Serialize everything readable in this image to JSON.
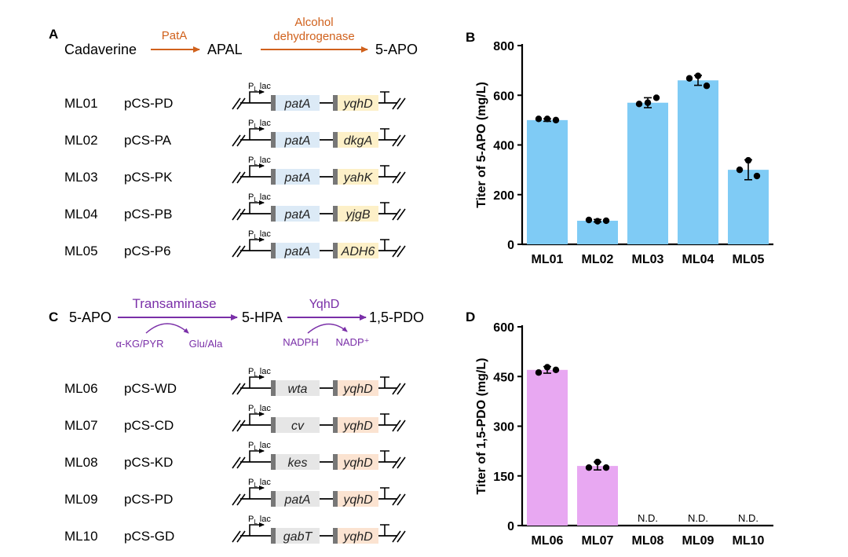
{
  "panels": {
    "A": {
      "letter": "A",
      "pathway": {
        "substrate": "Cadaverine",
        "enzyme1": "PatA",
        "intermediate": "APAL",
        "enzyme2_line1": "Alcohol",
        "enzyme2_line2": "dehydrogenase",
        "product": "5-APO"
      },
      "promoter_label": "P",
      "promoter_sub": "L",
      "promoter_suffix": "lac",
      "strains": [
        {
          "id": "ML01",
          "plasmid": "pCS-PD",
          "gene1": "patA",
          "gene2": "yqhD"
        },
        {
          "id": "ML02",
          "plasmid": "pCS-PA",
          "gene1": "patA",
          "gene2": "dkgA"
        },
        {
          "id": "ML03",
          "plasmid": "pCS-PK",
          "gene1": "patA",
          "gene2": "yahK"
        },
        {
          "id": "ML04",
          "plasmid": "pCS-PB",
          "gene1": "patA",
          "gene2": "yjgB"
        },
        {
          "id": "ML05",
          "plasmid": "pCS-P6",
          "gene1": "patA",
          "gene2": "ADH6"
        }
      ]
    },
    "C": {
      "letter": "C",
      "pathway": {
        "substrate": "5-APO",
        "enzyme1": "Transaminase",
        "cosub_in": "α-KG/PYR",
        "cosub_out": "Glu/Ala",
        "intermediate": "5-HPA",
        "enzyme2": "YqhD",
        "cofactor_in": "NADPH",
        "cofactor_out": "NADP⁺",
        "product": "1,5-PDO"
      },
      "promoter_label": "P",
      "promoter_sub": "L",
      "promoter_suffix": "lac",
      "strains": [
        {
          "id": "ML06",
          "plasmid": "pCS-WD",
          "gene1": "wta",
          "gene2": "yqhD"
        },
        {
          "id": "ML07",
          "plasmid": "pCS-CD",
          "gene1": "cv",
          "gene2": "yqhD"
        },
        {
          "id": "ML08",
          "plasmid": "pCS-KD",
          "gene1": "kes",
          "gene2": "yqhD"
        },
        {
          "id": "ML09",
          "plasmid": "pCS-PD",
          "gene1": "patA",
          "gene2": "yqhD"
        },
        {
          "id": "ML10",
          "plasmid": "pCS-GD",
          "gene1": "gabT",
          "gene2": "yqhD"
        }
      ]
    }
  },
  "colors": {
    "orange": "#d0611c",
    "purple": "#7a2fa8",
    "bar_blue": "#7fcbf5",
    "bar_pink": "#e8a8f2",
    "gene1_fill_A": "#dceaf6",
    "gene2_fill_A": "#fdf0c8",
    "gene1_fill_C": "#e6e6e6",
    "gene2_fill_C": "#fbe3d1",
    "terminator_grey": "#777777"
  },
  "chart_data": [
    {
      "panel": "B",
      "type": "bar",
      "title": "",
      "xlabel": "",
      "ylabel": "Titer of 5-APO (mg/L)",
      "categories": [
        "ML01",
        "ML02",
        "ML03",
        "ML04",
        "ML05"
      ],
      "values": [
        500,
        95,
        570,
        660,
        300
      ],
      "errors": [
        5,
        5,
        20,
        20,
        40
      ],
      "points": [
        [
          505,
          505,
          500
        ],
        [
          98,
          93,
          95
        ],
        [
          565,
          570,
          590
        ],
        [
          668,
          678,
          638
        ],
        [
          300,
          338,
          275
        ]
      ],
      "ylim": [
        0,
        800
      ],
      "yticks": [
        0,
        200,
        400,
        600,
        800
      ],
      "nd_labels": [
        "",
        "",
        "",
        "",
        ""
      ],
      "color": "#7fcbf5"
    },
    {
      "panel": "D",
      "type": "bar",
      "title": "",
      "xlabel": "",
      "ylabel": "Titer of 1,5-PDO (mg/L)",
      "categories": [
        "ML06",
        "ML07",
        "ML08",
        "ML09",
        "ML10"
      ],
      "values": [
        470,
        180,
        0,
        0,
        0
      ],
      "errors": [
        10,
        12,
        0,
        0,
        0
      ],
      "points": [
        [
          462,
          478,
          470
        ],
        [
          175,
          192,
          175
        ],
        [],
        [],
        []
      ],
      "ylim": [
        0,
        600
      ],
      "yticks": [
        0,
        150,
        300,
        450,
        600
      ],
      "nd_labels": [
        "",
        "",
        "N.D.",
        "N.D.",
        "N.D."
      ],
      "color": "#e8a8f2"
    }
  ]
}
